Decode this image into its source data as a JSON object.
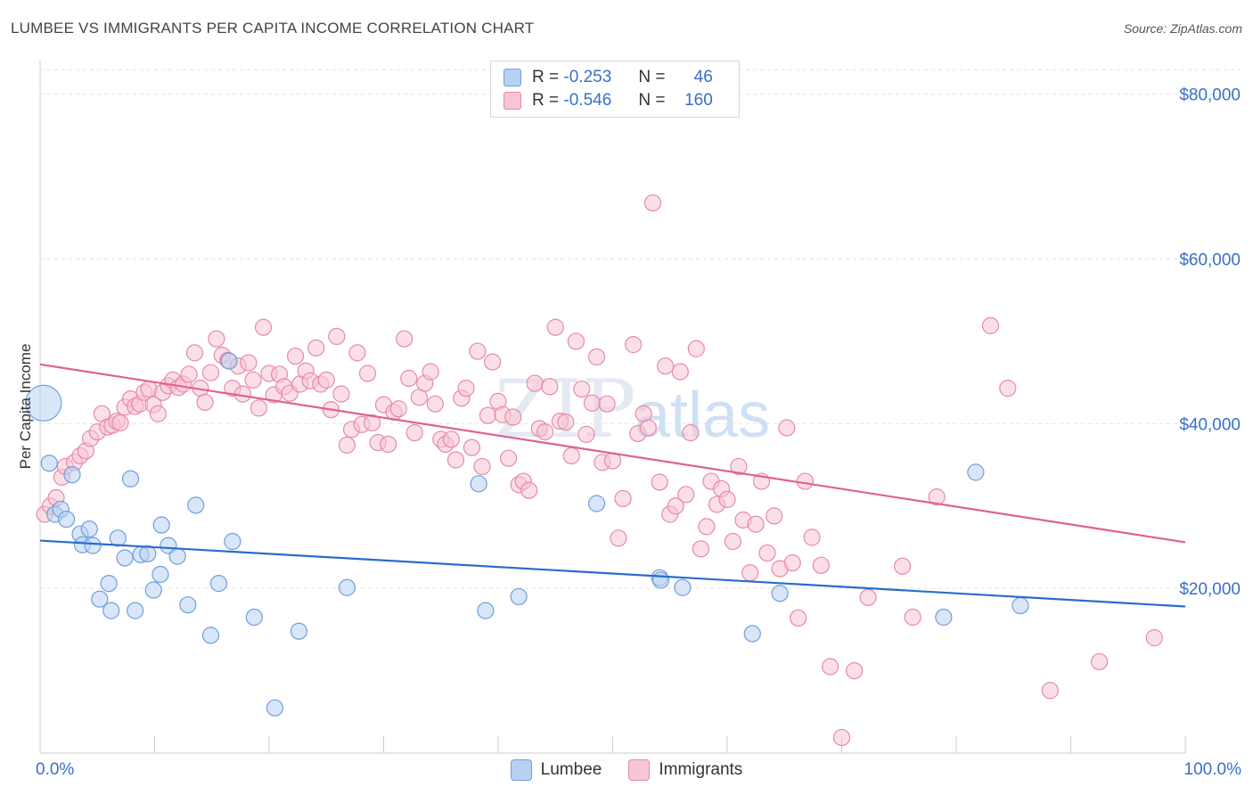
{
  "title": "LUMBEE VS IMMIGRANTS PER CAPITA INCOME CORRELATION CHART",
  "source": "Source: ZipAtlas.com",
  "watermark": {
    "zip": "ZIP",
    "atlas": "atlas"
  },
  "legend": {
    "rows": [
      {
        "r_label": "R =",
        "r_value": "-0.253",
        "n_label": "N =",
        "n_value": "46"
      },
      {
        "r_label": "R =",
        "r_value": "-0.546",
        "n_label": "N =",
        "n_value": "160"
      }
    ]
  },
  "colors": {
    "lumbee_fill": "#b8d1f3",
    "lumbee_stroke": "#6e9fdc",
    "lumbee_line": "#2a6ccc",
    "immigrants_fill": "#f8c5d4",
    "immigrants_stroke": "#e68aa8",
    "immigrants_line": "#e0628e",
    "axis_label": "#3a6fc8"
  },
  "chart_data": {
    "type": "scatter",
    "title": "LUMBEE VS IMMIGRANTS PER CAPITA INCOME CORRELATION CHART",
    "xlabel": "",
    "ylabel": "Per Capita Income",
    "xlim": [
      0,
      100
    ],
    "ylim": [
      0,
      83000
    ],
    "x_tick_labels": [
      "0.0%",
      "100.0%"
    ],
    "y_ticks": [
      20000,
      40000,
      60000,
      80000
    ],
    "y_tick_labels": [
      "$20,000",
      "$40,000",
      "$60,000",
      "$80,000"
    ],
    "grid": true,
    "legend_position": "top-center",
    "series": [
      {
        "name": "Lumbee",
        "r": -0.253,
        "n": 46,
        "trend": {
          "x": [
            0,
            100
          ],
          "y": [
            25800,
            17800
          ]
        },
        "points": [
          [
            0.3,
            42500
          ],
          [
            0.8,
            35200
          ],
          [
            1.3,
            29000
          ],
          [
            1.8,
            29600
          ],
          [
            2.3,
            28400
          ],
          [
            2.8,
            33800
          ],
          [
            3.5,
            26600
          ],
          [
            3.7,
            25300
          ],
          [
            4.3,
            27200
          ],
          [
            4.6,
            25200
          ],
          [
            5.2,
            18700
          ],
          [
            6.0,
            20600
          ],
          [
            6.2,
            17300
          ],
          [
            6.8,
            26100
          ],
          [
            7.4,
            23700
          ],
          [
            7.9,
            33300
          ],
          [
            8.3,
            17300
          ],
          [
            8.8,
            24100
          ],
          [
            9.4,
            24200
          ],
          [
            9.9,
            19800
          ],
          [
            10.5,
            21700
          ],
          [
            10.6,
            27700
          ],
          [
            11.2,
            25200
          ],
          [
            12.0,
            23900
          ],
          [
            12.9,
            18000
          ],
          [
            13.6,
            30100
          ],
          [
            14.9,
            14300
          ],
          [
            15.6,
            20600
          ],
          [
            16.5,
            47600
          ],
          [
            16.8,
            25700
          ],
          [
            18.7,
            16500
          ],
          [
            20.5,
            5500
          ],
          [
            22.6,
            14800
          ],
          [
            26.8,
            20100
          ],
          [
            38.3,
            32700
          ],
          [
            38.9,
            17300
          ],
          [
            41.8,
            19000
          ],
          [
            48.6,
            30300
          ],
          [
            54.1,
            21300
          ],
          [
            54.2,
            21000
          ],
          [
            56.1,
            20100
          ],
          [
            62.2,
            14500
          ],
          [
            64.6,
            19400
          ],
          [
            78.9,
            16500
          ],
          [
            81.7,
            34100
          ],
          [
            85.6,
            17900
          ]
        ]
      },
      {
        "name": "Immigrants",
        "r": -0.546,
        "n": 160,
        "trend": {
          "x": [
            0,
            100
          ],
          "y": [
            47200,
            25600
          ]
        },
        "points": [
          [
            0.4,
            29000
          ],
          [
            0.9,
            30000
          ],
          [
            1.4,
            31000
          ],
          [
            1.9,
            33500
          ],
          [
            2.2,
            34800
          ],
          [
            3.0,
            35300
          ],
          [
            3.5,
            36100
          ],
          [
            4.0,
            36700
          ],
          [
            4.4,
            38200
          ],
          [
            5.0,
            39000
          ],
          [
            5.4,
            41200
          ],
          [
            5.9,
            39600
          ],
          [
            6.3,
            39800
          ],
          [
            6.7,
            40300
          ],
          [
            7.0,
            40100
          ],
          [
            7.4,
            42000
          ],
          [
            7.9,
            43000
          ],
          [
            8.3,
            42100
          ],
          [
            8.7,
            42400
          ],
          [
            9.1,
            43800
          ],
          [
            9.5,
            44200
          ],
          [
            9.9,
            42300
          ],
          [
            10.3,
            41200
          ],
          [
            10.7,
            43800
          ],
          [
            11.2,
            44600
          ],
          [
            11.6,
            45300
          ],
          [
            12.1,
            44400
          ],
          [
            12.5,
            44800
          ],
          [
            13.0,
            46000
          ],
          [
            13.5,
            48600
          ],
          [
            14.0,
            44300
          ],
          [
            14.4,
            42600
          ],
          [
            14.9,
            46200
          ],
          [
            15.4,
            50300
          ],
          [
            15.9,
            48300
          ],
          [
            16.4,
            47700
          ],
          [
            16.8,
            44300
          ],
          [
            17.3,
            47000
          ],
          [
            17.7,
            43600
          ],
          [
            18.2,
            47400
          ],
          [
            18.6,
            45300
          ],
          [
            19.1,
            41900
          ],
          [
            19.5,
            51700
          ],
          [
            20.0,
            46100
          ],
          [
            20.4,
            43500
          ],
          [
            20.9,
            46000
          ],
          [
            21.3,
            44500
          ],
          [
            21.8,
            43700
          ],
          [
            22.3,
            48200
          ],
          [
            22.7,
            44800
          ],
          [
            23.2,
            46400
          ],
          [
            23.6,
            45200
          ],
          [
            24.1,
            49200
          ],
          [
            24.5,
            44800
          ],
          [
            25.0,
            45300
          ],
          [
            25.4,
            41700
          ],
          [
            25.9,
            50600
          ],
          [
            26.3,
            43600
          ],
          [
            26.8,
            37400
          ],
          [
            27.2,
            39300
          ],
          [
            27.7,
            48600
          ],
          [
            28.1,
            39900
          ],
          [
            28.6,
            46100
          ],
          [
            29.0,
            40100
          ],
          [
            29.5,
            37700
          ],
          [
            30.0,
            42300
          ],
          [
            30.4,
            37500
          ],
          [
            30.9,
            41400
          ],
          [
            31.3,
            41800
          ],
          [
            31.8,
            50300
          ],
          [
            32.2,
            45500
          ],
          [
            32.7,
            38900
          ],
          [
            33.1,
            43200
          ],
          [
            33.6,
            44900
          ],
          [
            34.1,
            46300
          ],
          [
            34.5,
            42400
          ],
          [
            35.0,
            38100
          ],
          [
            35.4,
            37500
          ],
          [
            35.9,
            38100
          ],
          [
            36.3,
            35600
          ],
          [
            36.8,
            43100
          ],
          [
            37.2,
            44300
          ],
          [
            37.7,
            37100
          ],
          [
            38.2,
            48800
          ],
          [
            38.6,
            34800
          ],
          [
            39.1,
            41000
          ],
          [
            39.5,
            47500
          ],
          [
            40.0,
            42700
          ],
          [
            40.4,
            41100
          ],
          [
            40.9,
            35800
          ],
          [
            41.3,
            40800
          ],
          [
            41.8,
            32600
          ],
          [
            42.2,
            33000
          ],
          [
            42.7,
            31900
          ],
          [
            43.2,
            44900
          ],
          [
            43.6,
            39400
          ],
          [
            44.1,
            39000
          ],
          [
            44.5,
            44500
          ],
          [
            45.0,
            51700
          ],
          [
            45.4,
            40300
          ],
          [
            45.9,
            40200
          ],
          [
            46.4,
            36100
          ],
          [
            46.8,
            50000
          ],
          [
            47.3,
            44200
          ],
          [
            47.7,
            38700
          ],
          [
            48.2,
            42500
          ],
          [
            48.6,
            48100
          ],
          [
            49.1,
            35300
          ],
          [
            49.5,
            42400
          ],
          [
            50.0,
            35500
          ],
          [
            50.5,
            26100
          ],
          [
            50.9,
            30900
          ],
          [
            51.8,
            49600
          ],
          [
            52.2,
            38800
          ],
          [
            52.7,
            41200
          ],
          [
            53.1,
            39500
          ],
          [
            53.5,
            66800
          ],
          [
            54.1,
            32900
          ],
          [
            54.6,
            47000
          ],
          [
            55.0,
            29000
          ],
          [
            55.5,
            30000
          ],
          [
            55.9,
            46300
          ],
          [
            56.4,
            31400
          ],
          [
            56.8,
            38900
          ],
          [
            57.3,
            49100
          ],
          [
            57.7,
            24800
          ],
          [
            58.2,
            27500
          ],
          [
            58.6,
            33000
          ],
          [
            59.1,
            30200
          ],
          [
            59.5,
            32100
          ],
          [
            60.0,
            30800
          ],
          [
            60.5,
            25700
          ],
          [
            61.0,
            34800
          ],
          [
            61.4,
            28300
          ],
          [
            62.0,
            21900
          ],
          [
            62.5,
            27800
          ],
          [
            63.0,
            33000
          ],
          [
            63.5,
            24300
          ],
          [
            64.1,
            28800
          ],
          [
            64.6,
            22400
          ],
          [
            65.2,
            39500
          ],
          [
            65.7,
            23100
          ],
          [
            66.2,
            16400
          ],
          [
            66.8,
            33000
          ],
          [
            67.4,
            26200
          ],
          [
            68.2,
            22800
          ],
          [
            69.0,
            10500
          ],
          [
            70.0,
            1900
          ],
          [
            71.1,
            10000
          ],
          [
            72.3,
            18900
          ],
          [
            75.3,
            22700
          ],
          [
            76.2,
            16500
          ],
          [
            78.3,
            31100
          ],
          [
            83.0,
            51900
          ],
          [
            84.5,
            44300
          ],
          [
            88.2,
            7600
          ],
          [
            92.5,
            11100
          ],
          [
            97.3,
            14000
          ]
        ]
      }
    ]
  }
}
